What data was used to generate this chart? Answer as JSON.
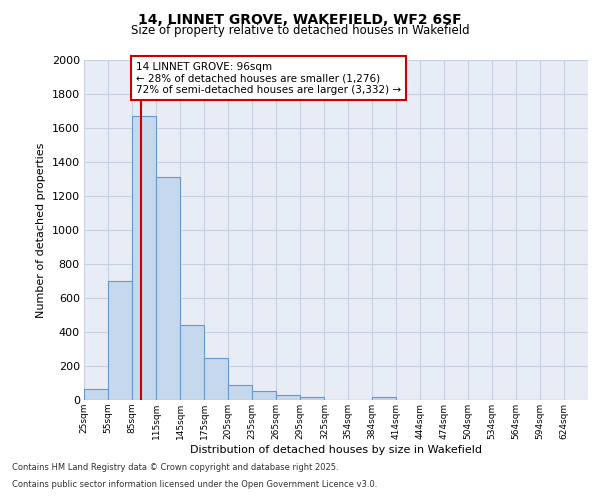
{
  "title1": "14, LINNET GROVE, WAKEFIELD, WF2 6SF",
  "title2": "Size of property relative to detached houses in Wakefield",
  "xlabel": "Distribution of detached houses by size in Wakefield",
  "ylabel": "Number of detached properties",
  "bin_left_edges": [
    25,
    55,
    85,
    115,
    145,
    175,
    205,
    235,
    265,
    295,
    325,
    354,
    384,
    414,
    444,
    474,
    504,
    534,
    564,
    594
  ],
  "bin_widths": [
    30,
    30,
    30,
    30,
    30,
    30,
    30,
    30,
    30,
    30,
    29,
    30,
    30,
    30,
    30,
    30,
    30,
    30,
    30,
    30
  ],
  "bar_heights": [
    65,
    700,
    1670,
    1310,
    440,
    250,
    90,
    55,
    30,
    20,
    0,
    0,
    15,
    0,
    0,
    0,
    0,
    0,
    0,
    0
  ],
  "bar_color": "#c5d8ee",
  "bar_edge_color": "#6699cc",
  "grid_color": "#c8cfe0",
  "bg_color": "#e8ecf5",
  "ylim": [
    0,
    2000
  ],
  "yticks": [
    0,
    200,
    400,
    600,
    800,
    1000,
    1200,
    1400,
    1600,
    1800,
    2000
  ],
  "property_size": 96,
  "red_line_color": "#cc0000",
  "annotation_line1": "14 LINNET GROVE: 96sqm",
  "annotation_line2": "← 28% of detached houses are smaller (1,276)",
  "annotation_line3": "72% of semi-detached houses are larger (3,332) →",
  "annotation_edge_color": "#cc0000",
  "footer1": "Contains HM Land Registry data © Crown copyright and database right 2025.",
  "footer2": "Contains public sector information licensed under the Open Government Licence v3.0.",
  "tick_labels": [
    "25sqm",
    "55sqm",
    "85sqm",
    "115sqm",
    "145sqm",
    "175sqm",
    "205sqm",
    "235sqm",
    "265sqm",
    "295sqm",
    "325sqm",
    "354sqm",
    "384sqm",
    "414sqm",
    "444sqm",
    "474sqm",
    "504sqm",
    "534sqm",
    "564sqm",
    "594sqm",
    "624sqm"
  ],
  "xlim_left": 25,
  "xlim_right": 654
}
